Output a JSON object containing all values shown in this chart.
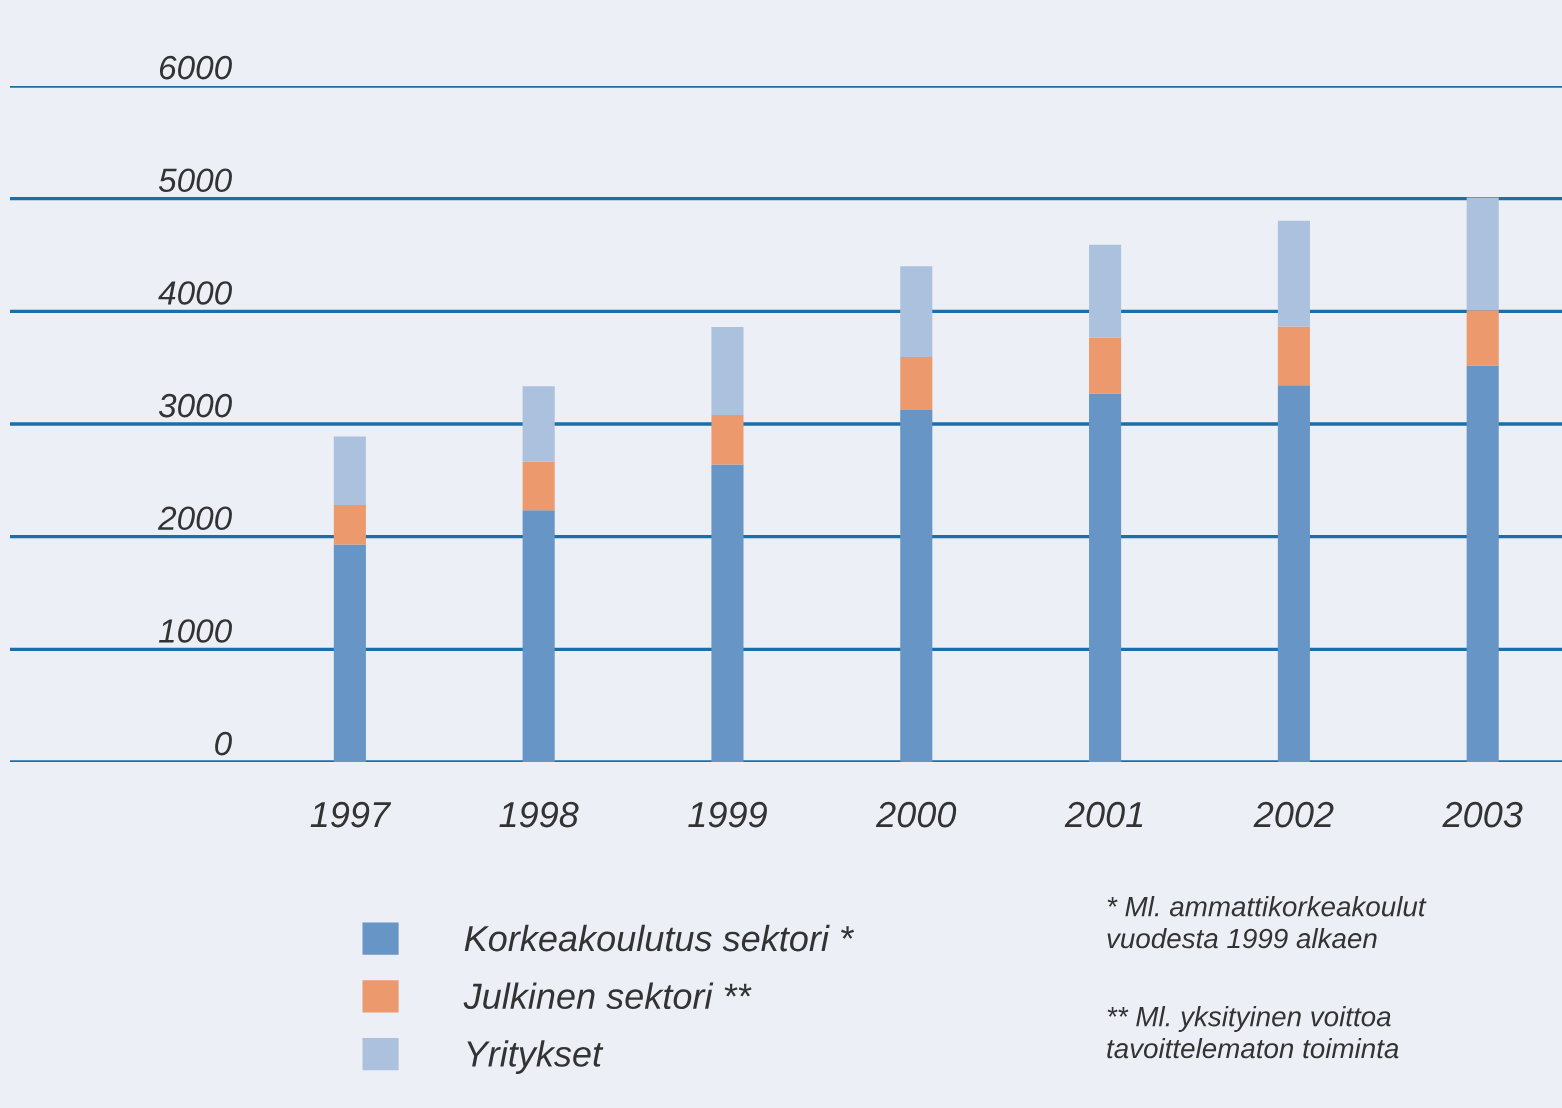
{
  "chart_data": {
    "type": "bar",
    "stacked": true,
    "categories": [
      "1997",
      "1998",
      "1999",
      "2000",
      "2001",
      "2002",
      "2003"
    ],
    "series": [
      {
        "name": "Korkeakoulutus sektori *",
        "color": "#6795c5",
        "values": [
          1930,
          2235,
          2640,
          3125,
          3270,
          3345,
          3520
        ]
      },
      {
        "name": "Julkinen sektori **",
        "color": "#ec996e",
        "values": [
          350,
          430,
          440,
          470,
          495,
          520,
          490
        ]
      },
      {
        "name": "Yritykset",
        "color": "#abc1de",
        "values": [
          610,
          670,
          780,
          805,
          825,
          940,
          1000
        ]
      }
    ],
    "ylim": [
      0,
      6000
    ],
    "yticks": [
      0,
      1000,
      2000,
      3000,
      4000,
      5000,
      6000
    ],
    "grid": "y",
    "legend": "bottom left",
    "annotations": [
      "* Ml. ammattikorkeakoulut\nvuodesta 1999 alkaen",
      "** Ml. yksityinen voittoa\ntavoittelematon toiminta"
    ]
  }
}
